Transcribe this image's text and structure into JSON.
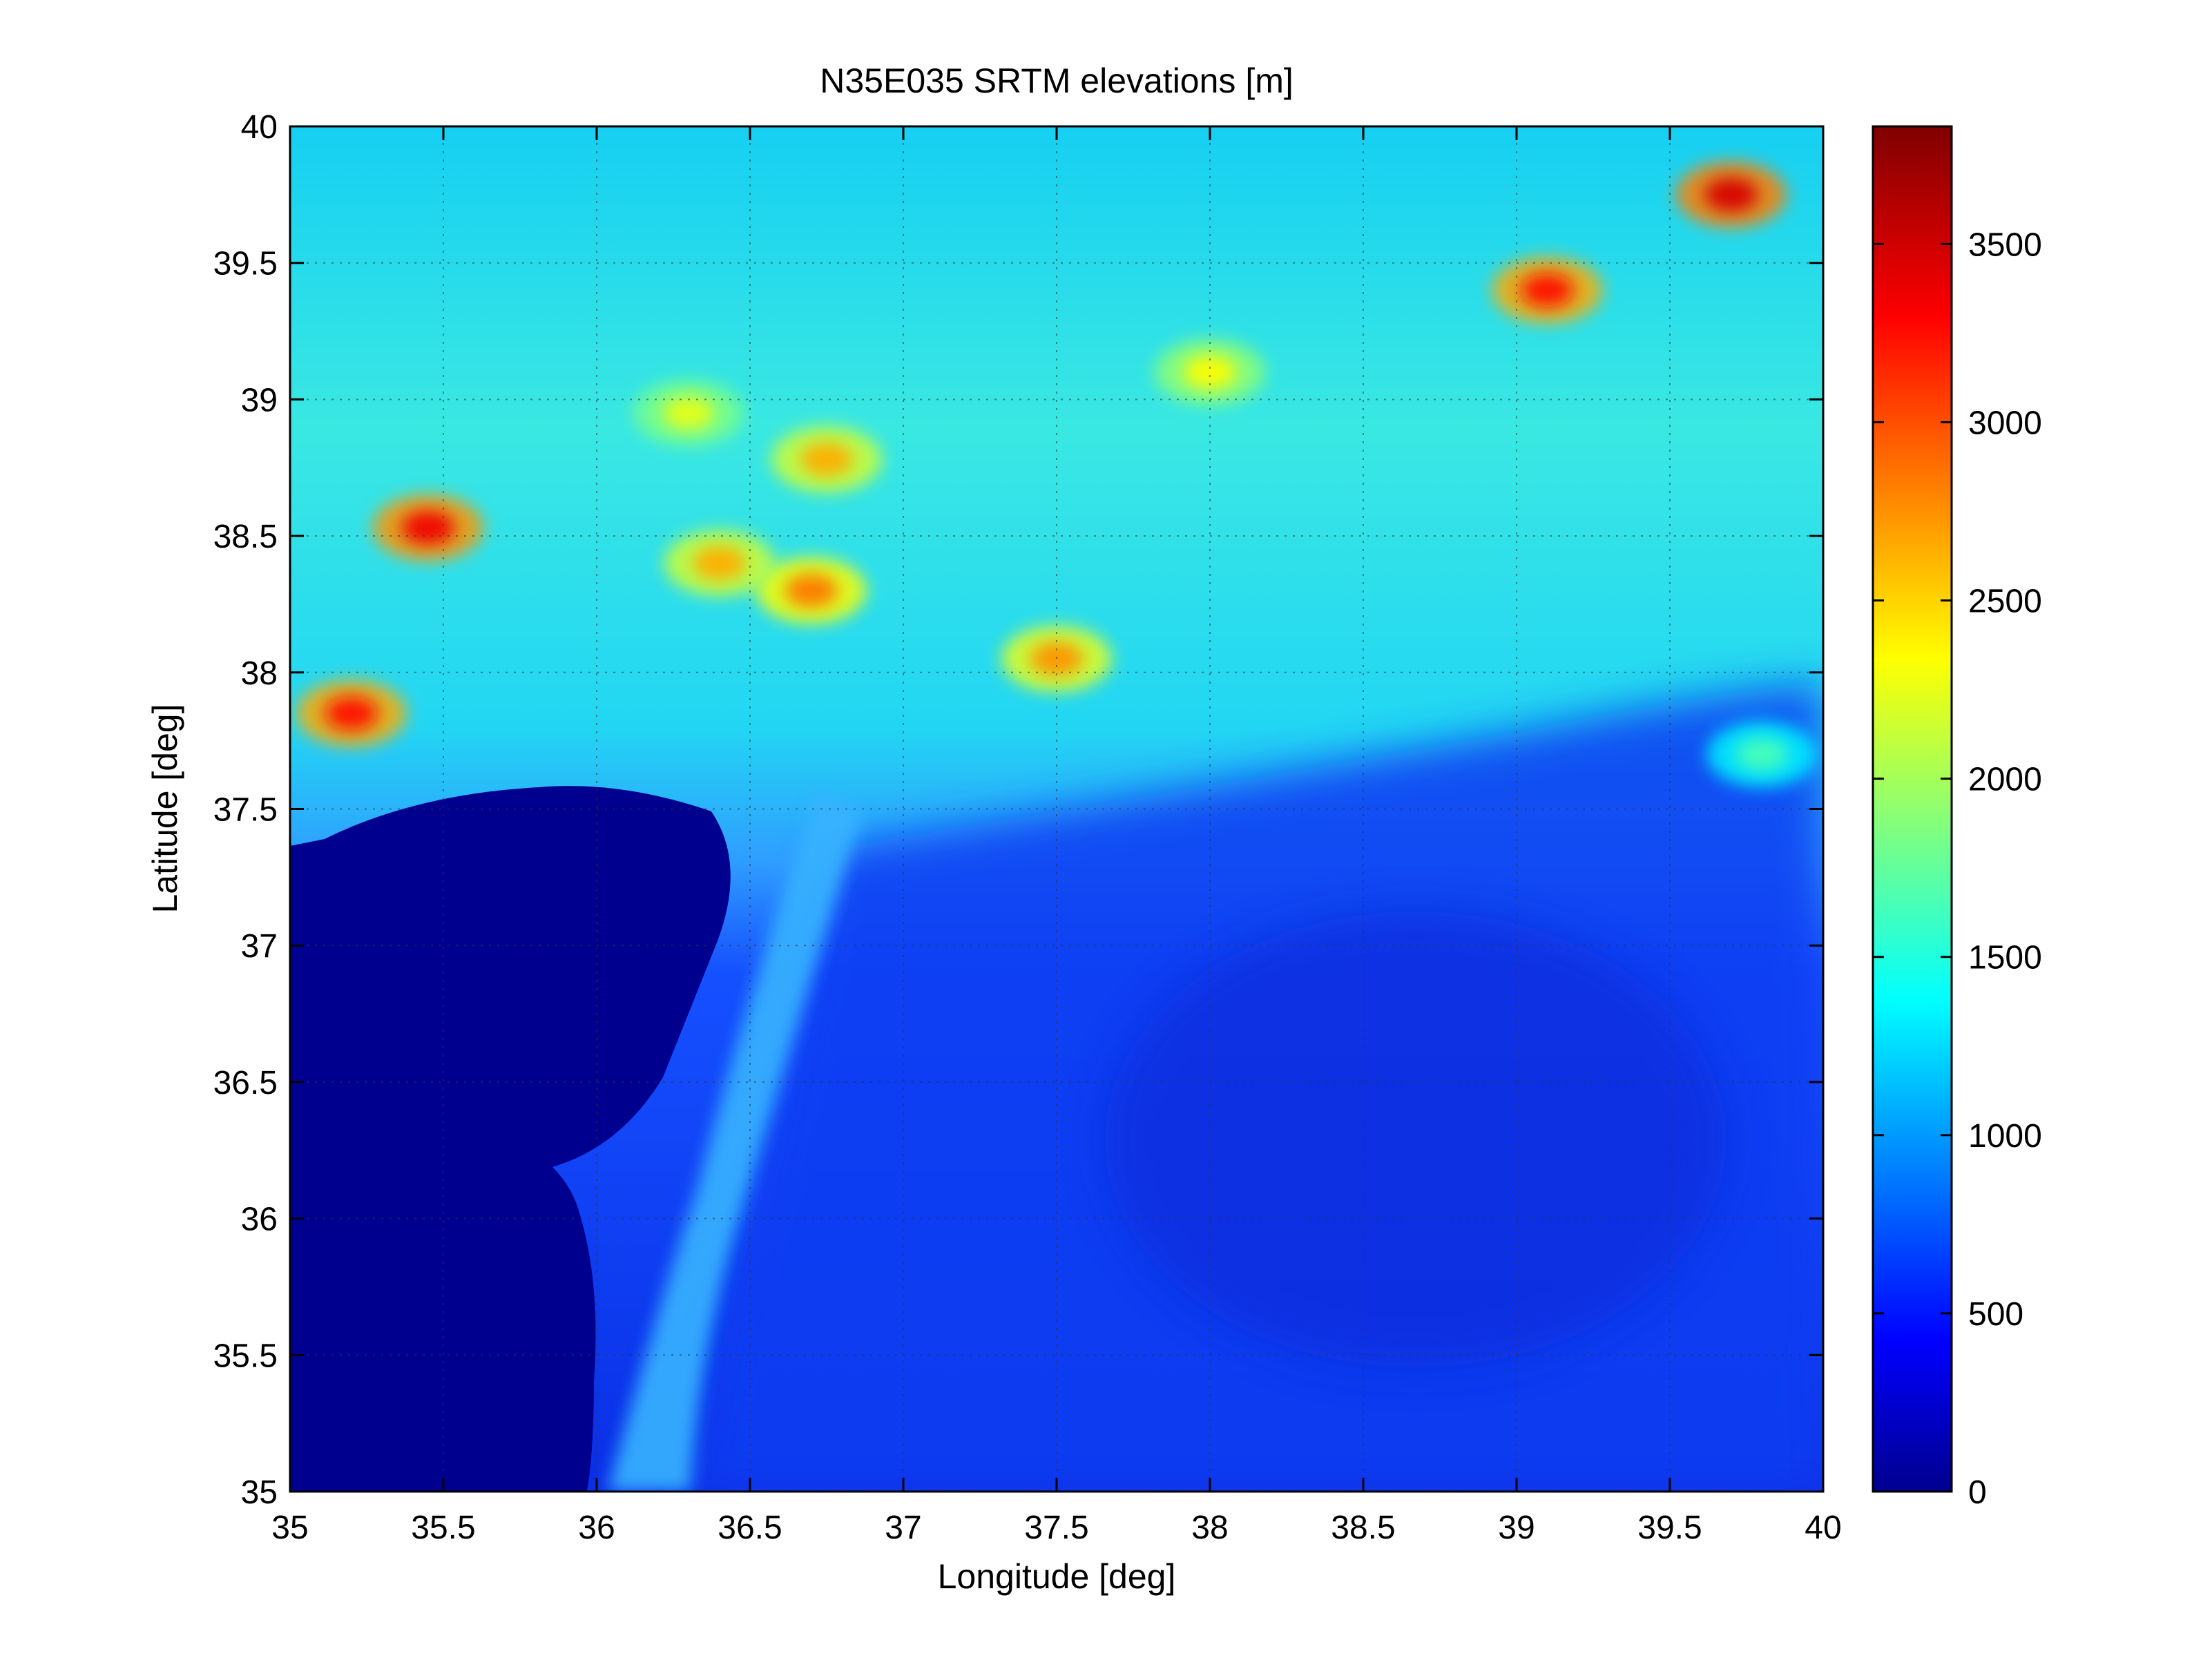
{
  "chart_data": {
    "type": "heatmap",
    "title": "N35E035 SRTM elevations [m]",
    "xlabel": "Longitude [deg]",
    "ylabel": "Latitude [deg]",
    "xlim": [
      35,
      40
    ],
    "ylim": [
      35,
      40
    ],
    "x_ticks": [
      "35",
      "35.5",
      "36",
      "36.5",
      "37",
      "37.5",
      "38",
      "38.5",
      "39",
      "39.5",
      "40"
    ],
    "y_ticks": [
      "35",
      "35.5",
      "36",
      "36.5",
      "37",
      "37.5",
      "38",
      "38.5",
      "39",
      "39.5",
      "40"
    ],
    "grid": true,
    "colormap": "jet",
    "colorbar": {
      "range": [
        0,
        3830
      ],
      "ticks": [
        "0",
        "500",
        "1000",
        "1500",
        "2000",
        "2500",
        "3000",
        "3500"
      ]
    },
    "elevation_features": [
      {
        "lon": 35.2,
        "lat": 37.85,
        "value": 3300
      },
      {
        "lon": 35.45,
        "lat": 38.53,
        "value": 3400
      },
      {
        "lon": 36.7,
        "lat": 38.3,
        "value": 2900
      },
      {
        "lon": 36.4,
        "lat": 38.4,
        "value": 2700
      },
      {
        "lon": 36.75,
        "lat": 38.78,
        "value": 2700
      },
      {
        "lon": 37.5,
        "lat": 38.05,
        "value": 2800
      },
      {
        "lon": 39.1,
        "lat": 39.4,
        "value": 3300
      },
      {
        "lon": 39.7,
        "lat": 39.75,
        "value": 3500
      },
      {
        "lon": 38.0,
        "lat": 39.1,
        "value": 2400
      },
      {
        "lon": 36.3,
        "lat": 38.95,
        "value": 2300
      },
      {
        "lon": 39.8,
        "lat": 37.7,
        "value": 1700
      }
    ]
  }
}
